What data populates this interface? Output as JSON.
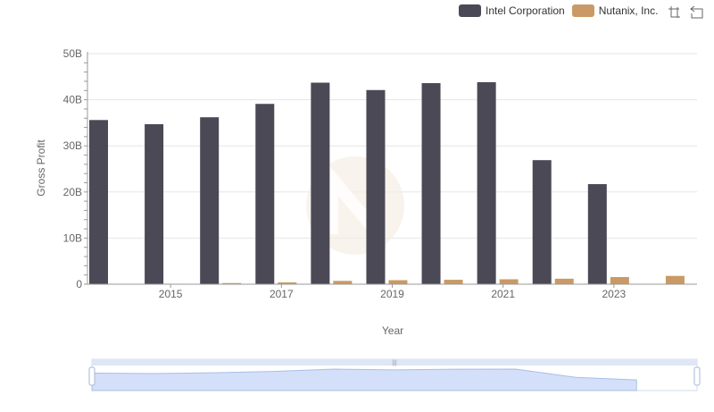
{
  "legend": {
    "items": [
      {
        "label": "Intel Corporation",
        "color": "#4a4955"
      },
      {
        "label": "Nutanix, Inc.",
        "color": "#c99a66"
      }
    ]
  },
  "toolbox": {
    "icons": [
      "zoom-icon",
      "restore-icon"
    ]
  },
  "chart_data": {
    "type": "bar",
    "xlabel": "Year",
    "ylabel": "Gross Profit",
    "x": [
      2014,
      2015,
      2016,
      2017,
      2018,
      2019,
      2020,
      2021,
      2022,
      2023,
      2024
    ],
    "x_tick_labels": [
      "2015",
      "2017",
      "2019",
      "2021",
      "2023"
    ],
    "y_tick_labels": [
      "0",
      "10B",
      "20B",
      "30B",
      "40B",
      "50B"
    ],
    "ylim": [
      0,
      50000000000
    ],
    "grid": "horizontal",
    "legend_position": "top-right",
    "series": [
      {
        "name": "Intel Corporation",
        "color": "#4a4955",
        "values": [
          35600000000,
          34700000000,
          36200000000,
          39100000000,
          43700000000,
          42100000000,
          43600000000,
          43800000000,
          26900000000,
          21700000000,
          null
        ]
      },
      {
        "name": "Nutanix, Inc.",
        "color": "#c99a66",
        "values": [
          null,
          100000000,
          250000000,
          400000000,
          720000000,
          870000000,
          960000000,
          1070000000,
          1190000000,
          1550000000,
          1800000000
        ]
      }
    ],
    "data_zoom": {
      "range_percent": [
        0,
        100
      ]
    }
  }
}
